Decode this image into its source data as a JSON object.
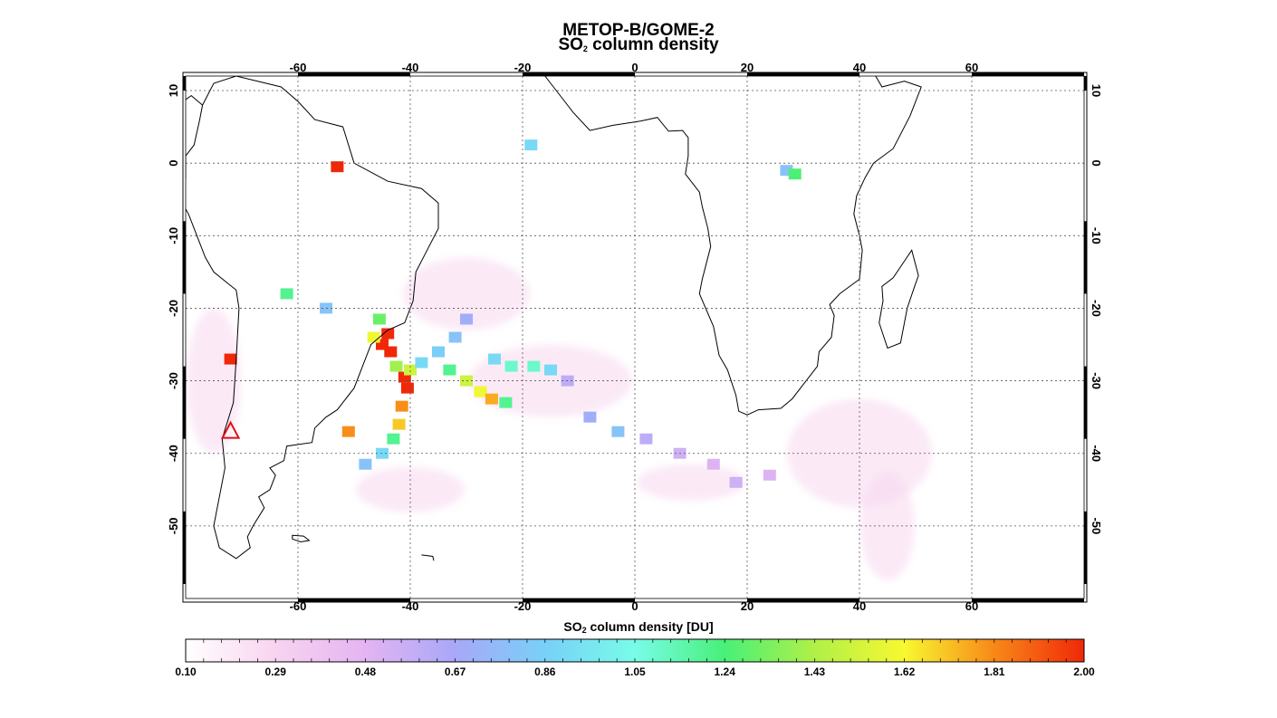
{
  "title": {
    "line1": "METOP-B/GOME-2",
    "line2_prefix": "SO",
    "line2_sub": "2",
    "line2_suffix": " column density"
  },
  "map": {
    "lon_range": [
      -80,
      80
    ],
    "lat_range": [
      -60,
      12
    ],
    "lon_ticks": [
      -60,
      -40,
      -20,
      0,
      20,
      40,
      60
    ],
    "lon_tick_labels": [
      "-60",
      "-40",
      "-20",
      "0",
      "20",
      "40",
      "60"
    ],
    "lat_ticks": [
      10,
      0,
      -10,
      -20,
      -30,
      -40,
      -50
    ],
    "lat_tick_labels": [
      "10",
      "0",
      "-10",
      "-20",
      "-30",
      "-40",
      "-50"
    ],
    "grid": "dotted",
    "volcano_marker": {
      "lon": -72,
      "lat": -37
    }
  },
  "colorbar": {
    "title_prefix": "SO",
    "title_sub": "2",
    "title_suffix": " column density [DU]",
    "min": 0.1,
    "max": 2.0,
    "tick_labels": [
      "0.10",
      "0.29",
      "0.48",
      "0.67",
      "0.86",
      "1.05",
      "1.24",
      "1.43",
      "1.62",
      "1.81",
      "2.00"
    ],
    "colors": [
      "#ffffff",
      "#f8d4f0",
      "#e4b4f2",
      "#a8a8f8",
      "#78d0f8",
      "#78fce8",
      "#48f078",
      "#b0f048",
      "#f8f830",
      "#f88818",
      "#f02808"
    ]
  },
  "plumes": [
    {
      "lon": -45.0,
      "lat": -25.0,
      "value": 2.0
    },
    {
      "lon": -44.0,
      "lat": -23.5,
      "value": 2.0
    },
    {
      "lon": -43.5,
      "lat": -26.0,
      "value": 2.0
    },
    {
      "lon": -41.0,
      "lat": -29.5,
      "value": 2.0
    },
    {
      "lon": -40.5,
      "lat": -31.0,
      "value": 2.0
    },
    {
      "lon": -41.5,
      "lat": -33.5,
      "value": 1.8
    },
    {
      "lon": -42.0,
      "lat": -36.0,
      "value": 1.7
    },
    {
      "lon": -43.0,
      "lat": -38.0,
      "value": 1.2
    },
    {
      "lon": -45.0,
      "lat": -40.0,
      "value": 0.9
    },
    {
      "lon": -48.0,
      "lat": -41.5,
      "value": 0.8
    },
    {
      "lon": -40.0,
      "lat": -28.5,
      "value": 1.5
    },
    {
      "lon": -42.5,
      "lat": -28.0,
      "value": 1.4
    },
    {
      "lon": -38.0,
      "lat": -27.5,
      "value": 0.9
    },
    {
      "lon": -35.0,
      "lat": -26.0,
      "value": 0.85
    },
    {
      "lon": -32.0,
      "lat": -24.0,
      "value": 0.8
    },
    {
      "lon": -30.0,
      "lat": -21.5,
      "value": 0.7
    },
    {
      "lon": -33.0,
      "lat": -28.5,
      "value": 1.2
    },
    {
      "lon": -30.0,
      "lat": -30.0,
      "value": 1.5
    },
    {
      "lon": -27.5,
      "lat": -31.5,
      "value": 1.6
    },
    {
      "lon": -25.5,
      "lat": -32.5,
      "value": 1.75
    },
    {
      "lon": -23.0,
      "lat": -33.0,
      "value": 1.2
    },
    {
      "lon": -25.0,
      "lat": -27.0,
      "value": 0.9
    },
    {
      "lon": -22.0,
      "lat": -28.0,
      "value": 1.1
    },
    {
      "lon": -18.0,
      "lat": -28.0,
      "value": 1.1
    },
    {
      "lon": -15.0,
      "lat": -28.5,
      "value": 0.9
    },
    {
      "lon": -12.0,
      "lat": -30.0,
      "value": 0.6
    },
    {
      "lon": -8.0,
      "lat": -35.0,
      "value": 0.7
    },
    {
      "lon": -3.0,
      "lat": -37.0,
      "value": 0.8
    },
    {
      "lon": 2.0,
      "lat": -38.0,
      "value": 0.6
    },
    {
      "lon": 8.0,
      "lat": -40.0,
      "value": 0.55
    },
    {
      "lon": 14.0,
      "lat": -41.5,
      "value": 0.5
    },
    {
      "lon": 18.0,
      "lat": -44.0,
      "value": 0.55
    },
    {
      "lon": 24.0,
      "lat": -43.0,
      "value": 0.5
    },
    {
      "lon": -45.5,
      "lat": -21.5,
      "value": 1.3
    },
    {
      "lon": -46.5,
      "lat": -24.0,
      "value": 1.6
    },
    {
      "lon": 27.0,
      "lat": -1.0,
      "value": 0.8
    },
    {
      "lon": 28.5,
      "lat": -1.5,
      "value": 1.25
    },
    {
      "lon": -72.0,
      "lat": -27.0,
      "value": 2.0
    },
    {
      "lon": -51.0,
      "lat": -37.0,
      "value": 1.8
    },
    {
      "lon": -53.0,
      "lat": -0.5,
      "value": 2.0
    },
    {
      "lon": -18.5,
      "lat": 2.5,
      "value": 0.9
    },
    {
      "lon": -62.0,
      "lat": -18.0,
      "value": 1.2
    },
    {
      "lon": -55.0,
      "lat": -20.0,
      "value": 0.8
    }
  ]
}
